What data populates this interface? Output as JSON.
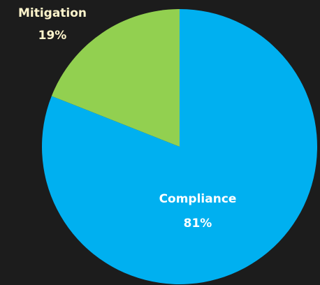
{
  "chart_data": {
    "type": "pie",
    "categories": [
      "Compliance",
      "Mitigation"
    ],
    "values": [
      81,
      19
    ],
    "value_labels": [
      "81%",
      "19%"
    ],
    "colors": [
      "#00b0f0",
      "#92d050"
    ]
  }
}
